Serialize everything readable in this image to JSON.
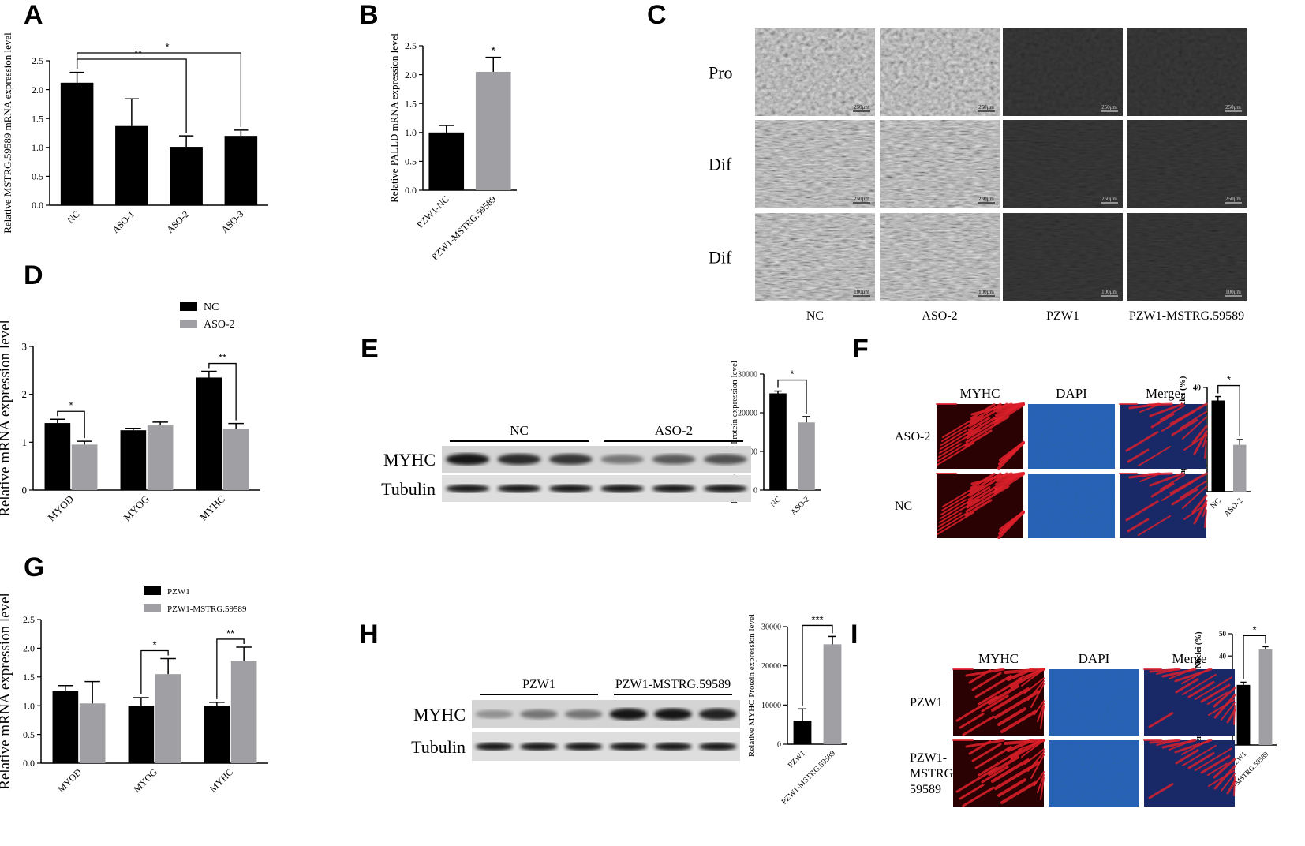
{
  "panel_letters": [
    "A",
    "B",
    "C",
    "D",
    "E",
    "F",
    "G",
    "H",
    "I"
  ],
  "colors": {
    "black_bar": "#000000",
    "gray_bar": "#a0a0a4",
    "red_stain": "#e0202a",
    "blue_stain": "#2a78d8"
  },
  "chart_data": [
    {
      "id": "A",
      "type": "bar",
      "ylabel": "Relative MSTRG.59589 mRNA expression level",
      "categories": [
        "NC",
        "ASO-1",
        "ASO-2",
        "ASO-3"
      ],
      "values": [
        2.12,
        1.37,
        1.01,
        1.2
      ],
      "errors": [
        0.18,
        0.47,
        0.19,
        0.1
      ],
      "bar_colors": [
        "#000000",
        "#000000",
        "#000000",
        "#000000"
      ],
      "ylim": [
        0,
        2.5
      ],
      "yticks": [
        "0.0",
        "0.5",
        "1.0",
        "1.5",
        "2.0",
        "2.5"
      ],
      "significance": [
        {
          "from": 0,
          "to": 2,
          "label": "**"
        },
        {
          "from": 0,
          "to": 3,
          "label": "*"
        }
      ]
    },
    {
      "id": "B",
      "type": "bar",
      "ylabel": "Relative PALLD mRNA expression level",
      "categories": [
        "PZW1-NC",
        "PZW1-MSTRG.59589"
      ],
      "values": [
        1.0,
        2.05
      ],
      "errors": [
        0.12,
        0.25
      ],
      "bar_colors": [
        "#000000",
        "#a0a0a4"
      ],
      "ylim": [
        0,
        2.5
      ],
      "yticks": [
        "0.0",
        "0.5",
        "1.0",
        "1.5",
        "2.0",
        "2.5"
      ],
      "significance": [
        {
          "bar": 1,
          "label": "*"
        }
      ]
    },
    {
      "id": "D",
      "type": "bar",
      "ylabel": "Relative mRNA expression level",
      "categories": [
        "MYOD",
        "MYOG",
        "MYHC"
      ],
      "series": [
        {
          "name": "NC",
          "values": [
            1.4,
            1.25,
            2.35
          ],
          "errors": [
            0.08,
            0.04,
            0.13
          ]
        },
        {
          "name": "ASO-2",
          "values": [
            0.95,
            1.35,
            1.28
          ],
          "errors": [
            0.07,
            0.07,
            0.11
          ]
        }
      ],
      "ylim": [
        0,
        3
      ],
      "yticks": [
        "0",
        "1",
        "2",
        "3"
      ],
      "significance": [
        {
          "group": 0,
          "label": "*"
        },
        {
          "group": 2,
          "label": "**"
        }
      ]
    },
    {
      "id": "E",
      "type": "bar",
      "ylabel": "Relative MYHC Protein expression level",
      "categories": [
        "NC",
        "ASO-2"
      ],
      "values": [
        25000,
        17500
      ],
      "errors": [
        600,
        1500
      ],
      "bar_colors": [
        "#000000",
        "#a0a0a4"
      ],
      "ylim": [
        0,
        30000
      ],
      "yticks": [
        "0",
        "10000",
        "20000",
        "30000"
      ],
      "significance": [
        {
          "from": 0,
          "to": 1,
          "label": "*"
        }
      ]
    },
    {
      "id": "F",
      "type": "bar",
      "ylabel": "Percentage of MYHC⁺ Nuclei (%)",
      "categories": [
        "NC",
        "ASO-2"
      ],
      "values": [
        35,
        18
      ],
      "errors": [
        1.5,
        2
      ],
      "bar_colors": [
        "#000000",
        "#a0a0a4"
      ],
      "ylim": [
        0,
        40
      ],
      "yticks": [
        "0",
        "10",
        "20",
        "30",
        "40"
      ],
      "significance": [
        {
          "from": 0,
          "to": 1,
          "label": "*"
        }
      ]
    },
    {
      "id": "G",
      "type": "bar",
      "ylabel": "Relative mRNA expression level",
      "categories": [
        "MYOD",
        "MYOG",
        "MYHC"
      ],
      "series": [
        {
          "name": "PZW1",
          "values": [
            1.25,
            1.0,
            1.0
          ],
          "errors": [
            0.1,
            0.14,
            0.06
          ]
        },
        {
          "name": "PZW1-MSTRG.59589",
          "values": [
            1.04,
            1.55,
            1.78
          ],
          "errors": [
            0.38,
            0.27,
            0.24
          ]
        }
      ],
      "ylim": [
        0,
        2.5
      ],
      "yticks": [
        "0.0",
        "0.5",
        "1.0",
        "1.5",
        "2.0",
        "2.5"
      ],
      "significance": [
        {
          "group": 1,
          "label": "*"
        },
        {
          "group": 2,
          "label": "**"
        }
      ]
    },
    {
      "id": "H",
      "type": "bar",
      "ylabel": "Relative MYHC Protein expression level",
      "categories": [
        "PZW1",
        "PZW1-MSTRG.59589"
      ],
      "values": [
        6000,
        25500
      ],
      "errors": [
        3000,
        2000
      ],
      "bar_colors": [
        "#000000",
        "#a0a0a4"
      ],
      "ylim": [
        0,
        30000
      ],
      "yticks": [
        "0",
        "10000",
        "20000",
        "30000"
      ],
      "significance": [
        {
          "from": 0,
          "to": 1,
          "label": "***"
        }
      ]
    },
    {
      "id": "I",
      "type": "bar",
      "ylabel": "Percentage of MYHC⁺ Nuclei (%)",
      "categories": [
        "PZW1",
        "PZW1-MSTRG.59589"
      ],
      "values": [
        27,
        43
      ],
      "errors": [
        1.2,
        1.2
      ],
      "bar_colors": [
        "#000000",
        "#a0a0a4"
      ],
      "ylim": [
        0,
        50
      ],
      "yticks": [
        "0",
        "10",
        "20",
        "30",
        "40",
        "50"
      ],
      "significance": [
        {
          "from": 0,
          "to": 1,
          "label": "*"
        }
      ]
    }
  ],
  "panel_c": {
    "row_labels": [
      "Pro",
      "Dif",
      "Dif"
    ],
    "col_labels": [
      "NC",
      "ASO-2",
      "PZW1",
      "PZW1-MSTRG.59589"
    ],
    "scale_bars": [
      "250μm",
      "250μm",
      "100μm"
    ]
  },
  "blot_e": {
    "groups": [
      "NC",
      "ASO-2"
    ],
    "rows": [
      "MYHC",
      "Tubulin"
    ],
    "myhc_intensity": [
      0.95,
      0.85,
      0.8,
      0.45,
      0.6,
      0.65
    ],
    "tubulin_intensity": [
      0.95,
      0.95,
      0.95,
      0.95,
      0.95,
      0.95
    ]
  },
  "blot_h": {
    "groups": [
      "PZW1",
      "PZW1-MSTRG.59589"
    ],
    "rows": [
      "MYHC",
      "Tubulin"
    ],
    "myhc_intensity": [
      0.3,
      0.45,
      0.45,
      0.95,
      0.95,
      0.9
    ],
    "tubulin_intensity": [
      0.95,
      0.95,
      0.95,
      0.95,
      0.95,
      0.95
    ]
  },
  "if_f": {
    "col_labels": [
      "MYHC",
      "DAPI",
      "Merge"
    ],
    "row_labels": [
      "ASO-2",
      "NC"
    ]
  },
  "if_i": {
    "col_labels": [
      "MYHC",
      "DAPI",
      "Merge"
    ],
    "row_labels": [
      "PZW1",
      "PZW1-\nMSTRG.\n59589"
    ]
  }
}
